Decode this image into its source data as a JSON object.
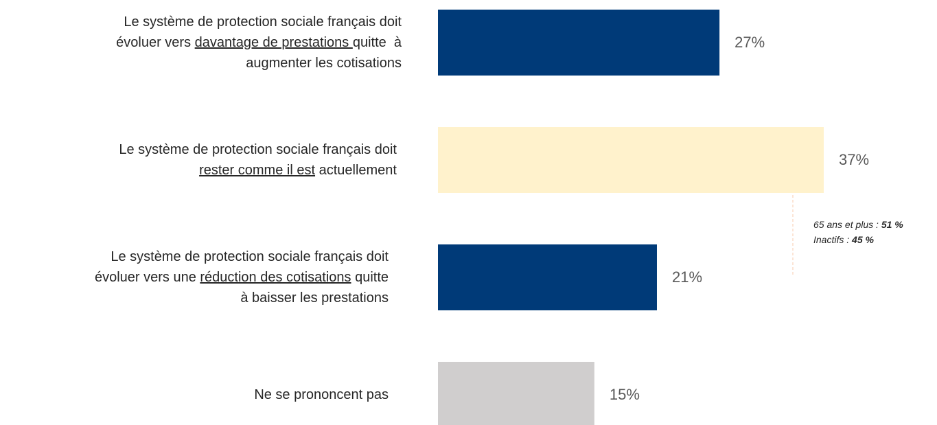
{
  "chart_data": {
    "type": "hbar",
    "categories": [
      [
        [
          {
            "text": "Le système de protection sociale français doit"
          }
        ],
        [
          {
            "text": "évoluer vers "
          },
          {
            "text": "davantage de prestations ",
            "underline": true
          },
          {
            "text": "quitte  à"
          }
        ],
        [
          {
            "text": "augmenter les cotisations"
          }
        ]
      ],
      [
        [
          {
            "text": "Le système de protection sociale français doit"
          }
        ],
        [
          {
            "text": "rester comme il est",
            "underline": true
          },
          {
            "text": " actuellement"
          }
        ]
      ],
      [
        [
          {
            "text": "Le système de protection sociale français doit"
          }
        ],
        [
          {
            "text": "évoluer vers une "
          },
          {
            "text": "réduction des cotisations",
            "underline": true
          },
          {
            "text": " quitte"
          }
        ],
        [
          {
            "text": "à baisser les prestations"
          }
        ]
      ],
      [
        [
          {
            "text": "Ne se prononcent pas"
          }
        ]
      ]
    ],
    "values": [
      27,
      37,
      21,
      15
    ],
    "value_labels": [
      "27%",
      "37%",
      "21%",
      "15%"
    ],
    "colors": [
      "#003a78",
      "#fff2cc",
      "#003a78",
      "#d0cece"
    ],
    "annotation": [
      [
        {
          "text": "65 ans et plus : "
        },
        {
          "text": "51 %",
          "bold": true
        }
      ],
      [
        {
          "text": "Inactifs : "
        },
        {
          "text": "45 %",
          "bold": true
        }
      ]
    ]
  }
}
